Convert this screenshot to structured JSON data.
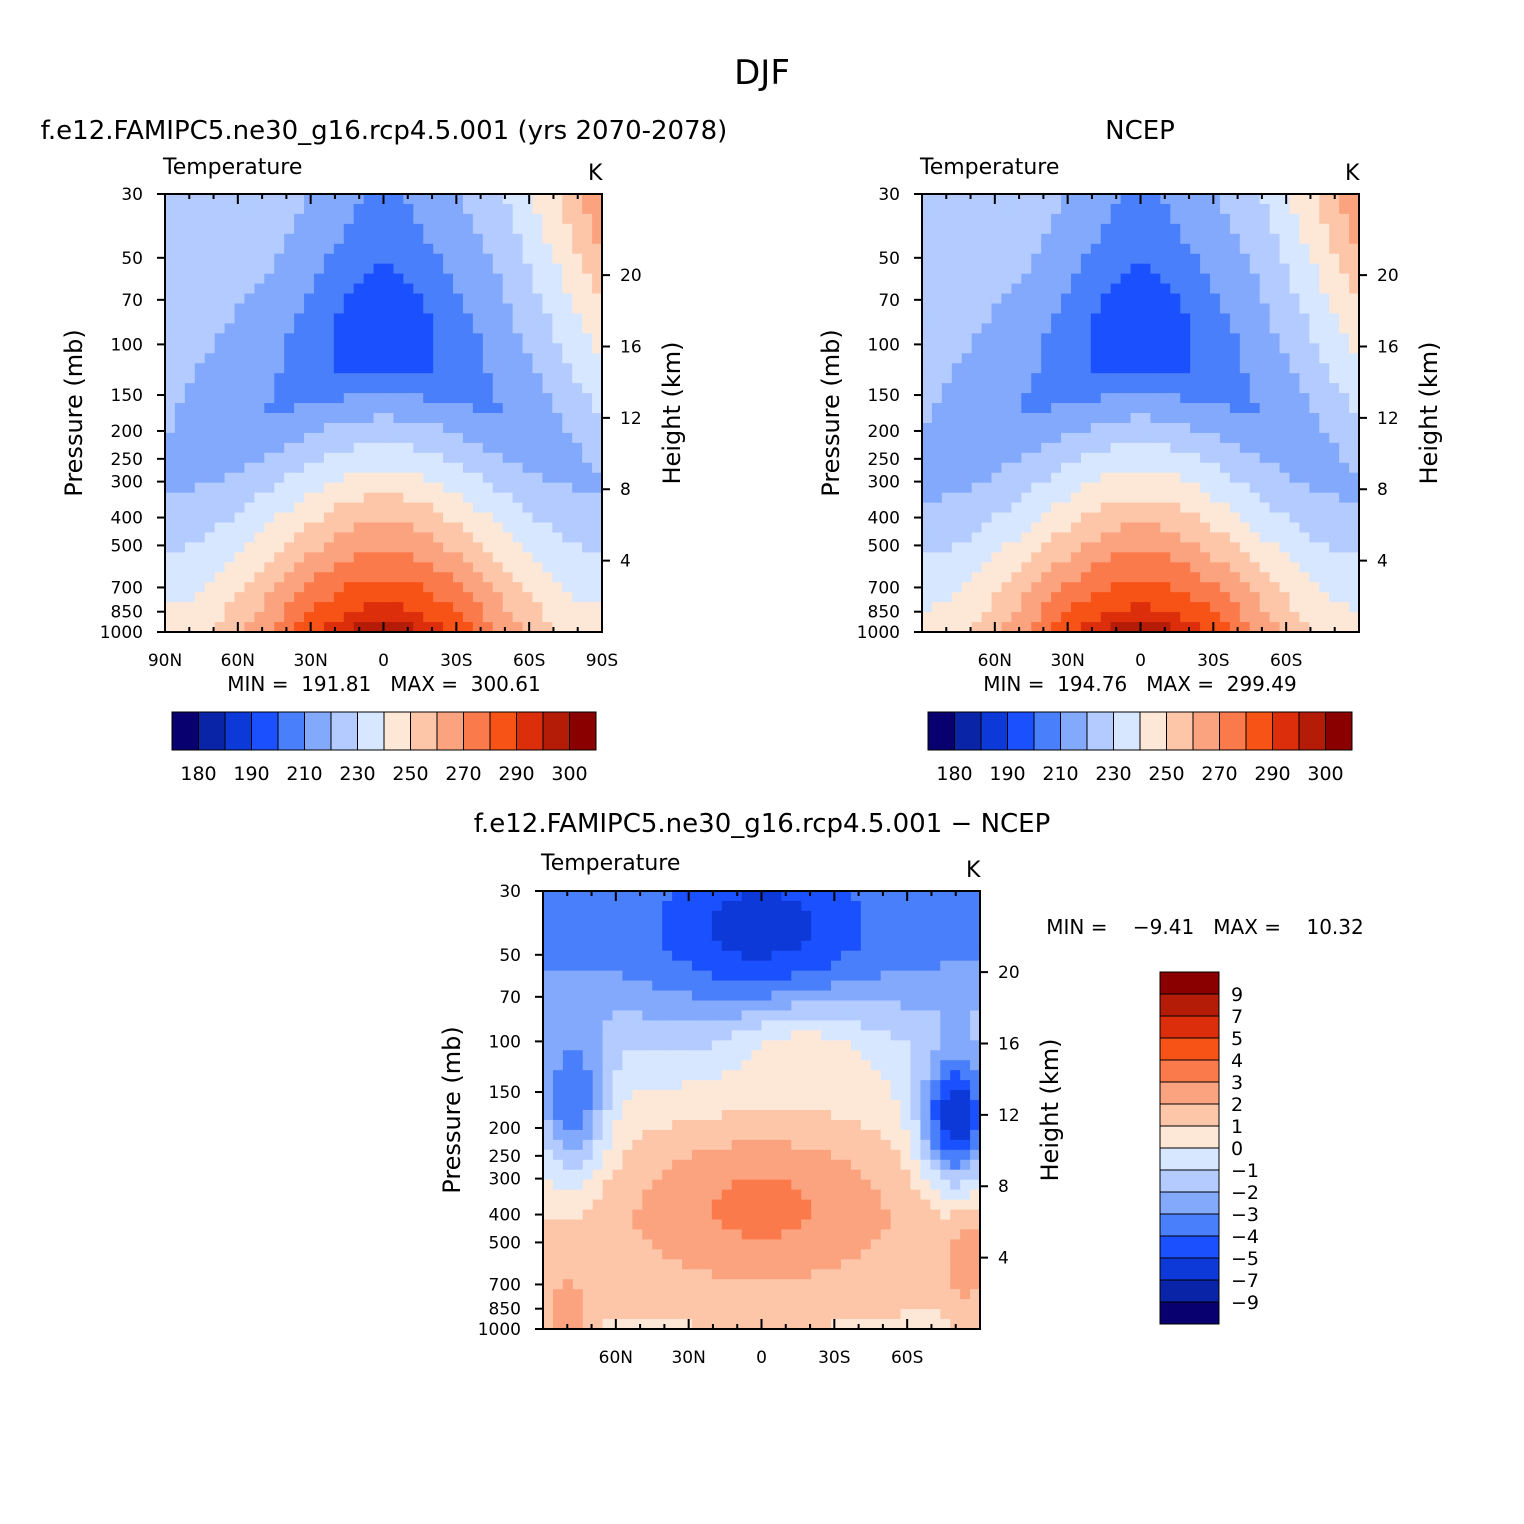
{
  "page_title": "DJF",
  "colors": {
    "temp_scale": [
      "#08006e",
      "#0a24a8",
      "#0d39d8",
      "#1b50ff",
      "#4a7ffb",
      "#83a9fd",
      "#b3cbff",
      "#d7e7ff",
      "#fde8d8",
      "#fdc6a8",
      "#fba37f",
      "#fb7a4c",
      "#f75317",
      "#dd2e0c",
      "#b41c08",
      "#8a0000"
    ],
    "diff_scale": [
      "#08006e",
      "#0a24a8",
      "#0d39d8",
      "#1b50ff",
      "#4a7ffb",
      "#83a9fd",
      "#b3cbff",
      "#d7e7ff",
      "#fde8d8",
      "#fdc6a8",
      "#fba37f",
      "#fb7a4c",
      "#f75317",
      "#dd2e0c",
      "#b41c08",
      "#8a0000"
    ]
  },
  "chart_data": [
    {
      "type": "heatmap",
      "id": "model",
      "title": "f.e12.FAMIPC5.ne30_g16.rcp4.5.001 (yrs 2070-2078)",
      "left_label": "Temperature",
      "right_label": "K",
      "ylabel": "Pressure (mb)",
      "y2label": "Height (km)",
      "x_tick_labels": [
        "90N",
        "60N",
        "30N",
        "0",
        "30S",
        "60S",
        "90S"
      ],
      "y_ticks": [
        "30",
        "50",
        "70",
        "100",
        "150",
        "200",
        "250",
        "300",
        "400",
        "500",
        "700",
        "850",
        "1000"
      ],
      "y2_ticks": [
        "20",
        "16",
        "12",
        "8",
        "4"
      ],
      "stats": "MIN =  191.81   MAX =  300.61",
      "colorbar_labels": [
        "180",
        "190",
        "210",
        "230",
        "250",
        "270",
        "290",
        "300"
      ],
      "min": 191.81,
      "max": 300.61
    },
    {
      "type": "heatmap",
      "id": "obs",
      "title": "NCEP",
      "left_label": "Temperature",
      "right_label": "K",
      "ylabel": "Pressure (mb)",
      "y2label": "Height (km)",
      "x_tick_labels": [
        "60N",
        "30N",
        "0",
        "30S",
        "60S"
      ],
      "y_ticks": [
        "30",
        "50",
        "70",
        "100",
        "150",
        "200",
        "250",
        "300",
        "400",
        "500",
        "700",
        "850",
        "1000"
      ],
      "y2_ticks": [
        "20",
        "16",
        "12",
        "8",
        "4"
      ],
      "stats": "MIN =  194.76   MAX =  299.49",
      "colorbar_labels": [
        "180",
        "190",
        "210",
        "230",
        "250",
        "270",
        "290",
        "300"
      ],
      "min": 194.76,
      "max": 299.49
    },
    {
      "type": "heatmap",
      "id": "diff",
      "title": "f.e12.FAMIPC5.ne30_g16.rcp4.5.001 − NCEP",
      "left_label": "Temperature",
      "right_label": "K",
      "ylabel": "Pressure (mb)",
      "y2label": "Height (km)",
      "x_tick_labels": [
        "60N",
        "30N",
        "0",
        "30S",
        "60S"
      ],
      "y_ticks": [
        "30",
        "50",
        "70",
        "100",
        "150",
        "200",
        "250",
        "300",
        "400",
        "500",
        "700",
        "850",
        "1000"
      ],
      "y2_ticks": [
        "20",
        "16",
        "12",
        "8",
        "4"
      ],
      "stats": "MIN =    −9.41   MAX =    10.32",
      "colorbar_labels": [
        "9",
        "7",
        "5",
        "4",
        "3",
        "2",
        "1",
        "0",
        "−1",
        "−2",
        "−3",
        "−4",
        "−5",
        "−7",
        "−9"
      ],
      "min": -9.41,
      "max": 10.32
    }
  ]
}
